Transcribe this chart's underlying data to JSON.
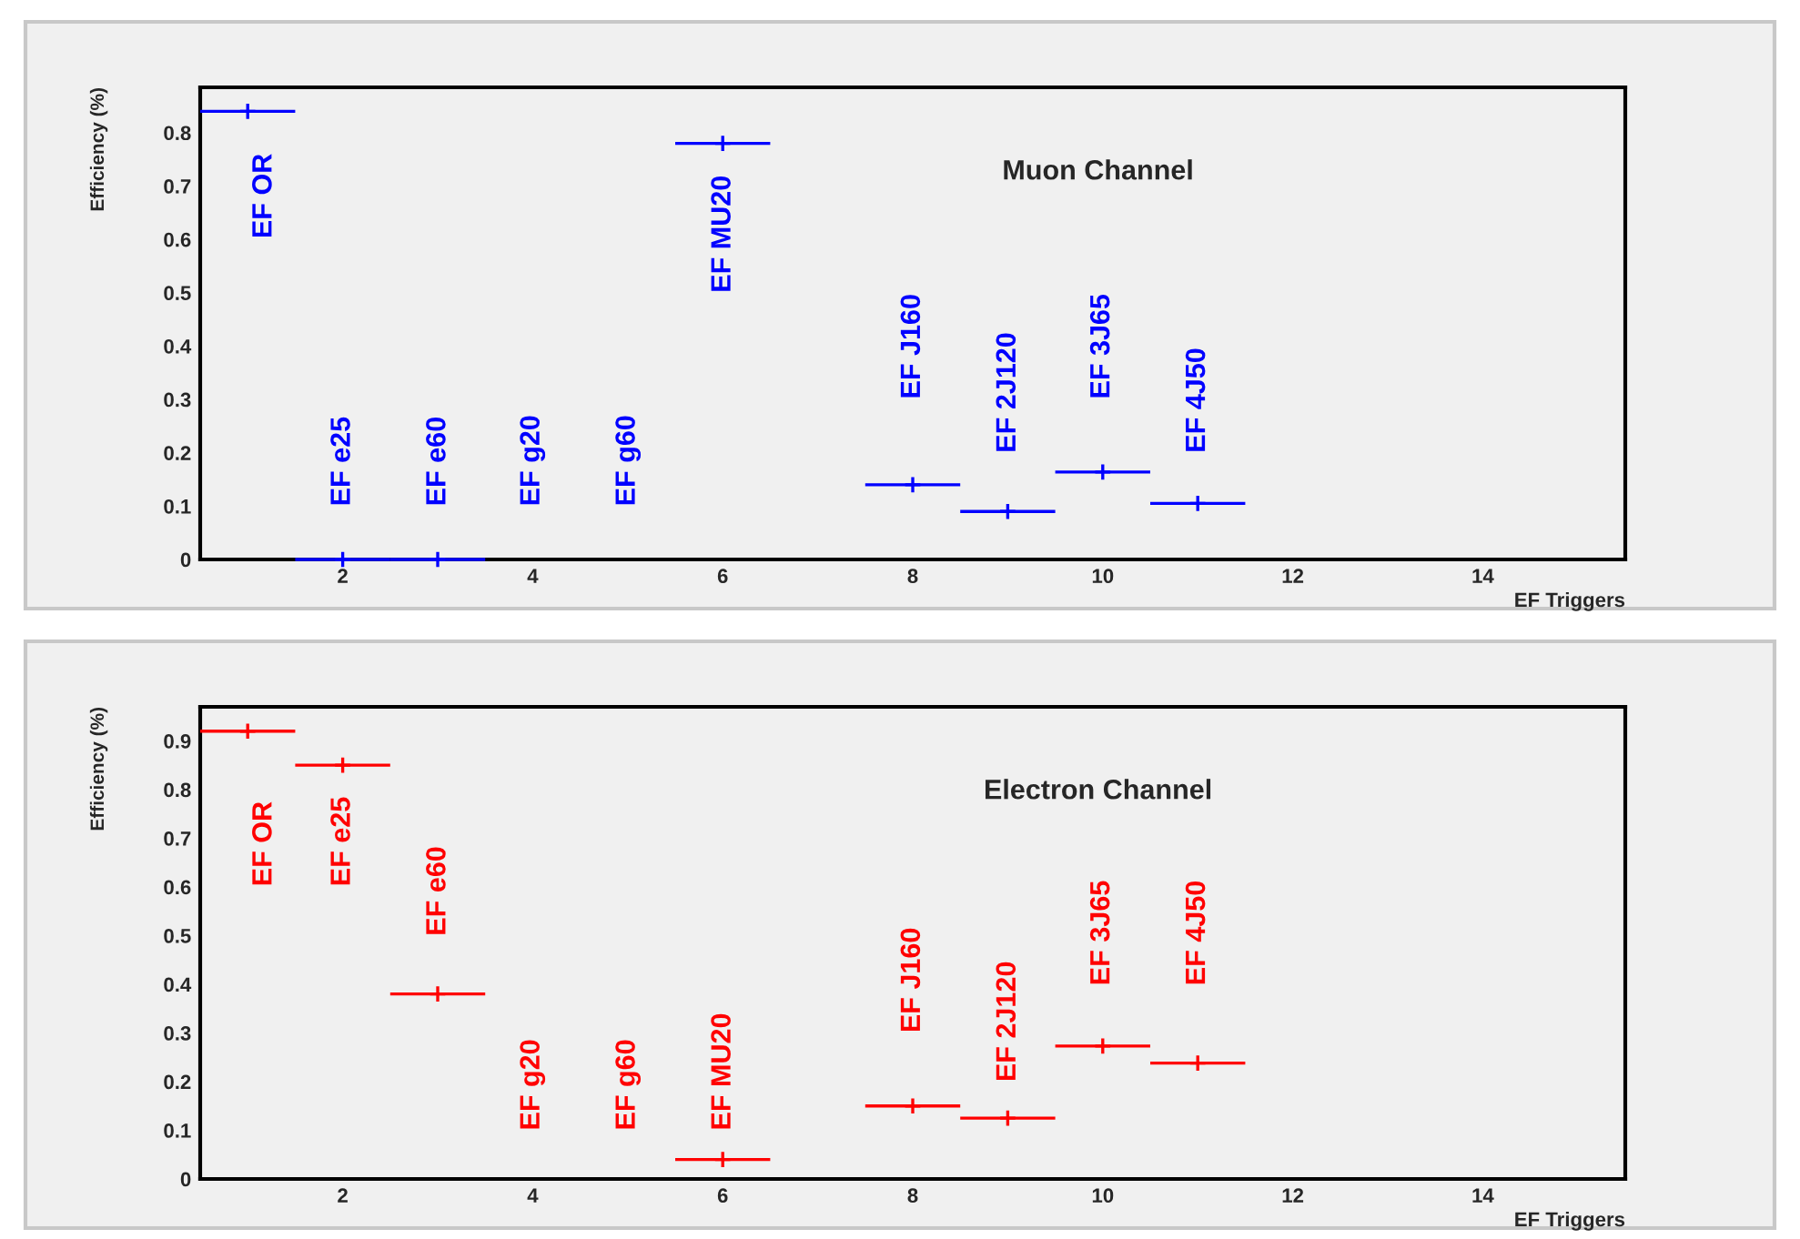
{
  "chart_data": [
    {
      "type": "scatter",
      "title": "Muon Channel",
      "xlabel": "EF Triggers",
      "ylabel": "Efficiency (%)",
      "marker": "cross",
      "series": [
        {
          "color": "#0000ff",
          "x": [
            1,
            2,
            3,
            6,
            8,
            9,
            10,
            11
          ],
          "values": [
            0.84,
            0,
            0,
            0.78,
            0.14,
            0.09,
            0.164,
            0.105
          ],
          "xerrors": [
            0.5,
            0.5,
            0.5,
            0.5,
            0.5,
            0.5,
            0.5,
            0.5
          ]
        }
      ],
      "xlim": [
        0.5,
        15.5
      ],
      "xticks": [
        2,
        4,
        6,
        8,
        10,
        12,
        14
      ],
      "ylim": [
        0,
        0.885
      ],
      "yticks": [
        0,
        0.1,
        0.2,
        0.3,
        0.4,
        0.5,
        0.6,
        0.7,
        0.8
      ],
      "annotations": [
        "EF OR",
        "EF e25",
        "EF e60",
        "EF g20",
        "EF g60",
        "EF MU20",
        "EF J160",
        "EF 2J120",
        "EF 3J65",
        "EF 4J50"
      ]
    },
    {
      "type": "scatter",
      "title": "Electron Channel",
      "xlabel": "EF Triggers",
      "ylabel": "Efficiency (%)",
      "marker": "cross",
      "series": [
        {
          "color": "#ff0000",
          "x": [
            1,
            2,
            3,
            6,
            8,
            9,
            10,
            11
          ],
          "values": [
            0.92,
            0.85,
            0.38,
            0.04,
            0.15,
            0.125,
            0.273,
            0.238
          ],
          "xerrors": [
            0.5,
            0.5,
            0.5,
            0.5,
            0.5,
            0.5,
            0.5,
            0.5
          ]
        }
      ],
      "xlim": [
        0.5,
        15.5
      ],
      "xticks": [
        2,
        4,
        6,
        8,
        10,
        12,
        14
      ],
      "ylim": [
        0,
        0.97
      ],
      "yticks": [
        0,
        0.1,
        0.2,
        0.3,
        0.4,
        0.5,
        0.6,
        0.7,
        0.8,
        0.9
      ],
      "annotations": [
        "EF OR",
        "EF e25",
        "EF e60",
        "EF g20",
        "EF g60",
        "EF MU20",
        "EF J160",
        "EF 2J120",
        "EF 3J65",
        "EF 4J50"
      ]
    }
  ]
}
